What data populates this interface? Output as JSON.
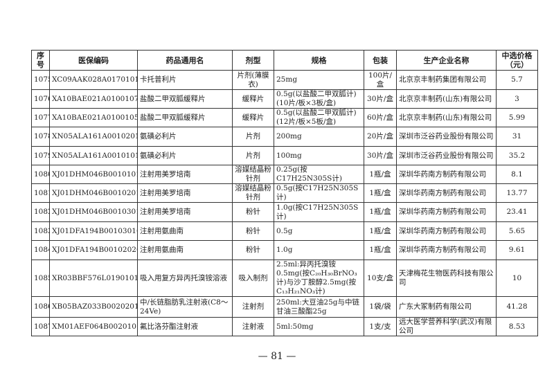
{
  "table": {
    "headers": [
      "序号",
      "医保编码",
      "药品通用名",
      "剂型",
      "规格",
      "包装",
      "生产企业名称",
      "中选价格（元）"
    ],
    "rows": [
      [
        "1075",
        "XC09AAK028A017010100062",
        "卡托普利片",
        "片剂(薄膜衣)",
        "25mg",
        "100片/盒",
        "北京京丰制药集团有限公司",
        "5.7"
      ],
      [
        "1076",
        "XA10BAE021A010010704105",
        "盐酸二甲双胍缓释片",
        "缓释片",
        "0.5g(以盐酸二甲双胍计)(10片/板×3板/盒)",
        "30片/盒",
        "北京京丰制药(山东)有限公司",
        "3"
      ],
      [
        "1077",
        "XA10BAE021A010010504105",
        "盐酸二甲双胍缓释片",
        "缓释片",
        "0.5g(以盐酸二甲双胍计)(12片/板×5板/盒)",
        "60片/盒",
        "北京京丰制药(山东)有限公司",
        "5.99"
      ],
      [
        "1078",
        "XN05ALA161A001020104859",
        "氨磺必利片",
        "片剂",
        "200mg",
        "20片/盒",
        "深圳市泛谷药业股份有限公司",
        "31"
      ],
      [
        "1079",
        "XN05ALA161A001010104859",
        "氨磺必利片",
        "片剂",
        "100mg",
        "30片/盒",
        "深圳市泛谷药业股份有限公司",
        "35.2"
      ],
      [
        "1080",
        "XJ01DHM046B001010100505",
        "注射用美罗培南",
        "溶媒结晶粉针剂",
        "0.25g(按C17H25N305S计)",
        "1瓶/盒",
        "深圳华药南方制药有限公司",
        "8.1"
      ],
      [
        "1081",
        "XJ01DHM046B001020100505",
        "注射用美罗培南",
        "溶媒结晶粉针剂",
        "0.5g(按C17H25N305S计)",
        "1瓶/盒",
        "深圳华药南方制药有限公司",
        "13.77"
      ],
      [
        "1082",
        "XJ01DHM046B001030100505",
        "注射用美罗培南",
        "粉针",
        "1.0g(按C17H25N305S计)",
        "1瓶/盒",
        "深圳华药南方制药有限公司",
        "23.41"
      ],
      [
        "1083",
        "XJ01DFA194B001030100505",
        "注射用氨曲南",
        "粉针",
        "0.5g",
        "1瓶/盒",
        "深圳华药南方制药有限公司",
        "5.65"
      ],
      [
        "1084",
        "XJ01DFA194B001020200505",
        "注射用氨曲南",
        "粉针",
        "1.0g",
        "1瓶/盒",
        "深圳华药南方制药有限公司",
        "9.61"
      ],
      [
        "1085",
        "XR03BBF576L019010110296",
        "吸入用复方异丙托溴铵溶液",
        "吸入制剂",
        "2.5ml:异丙托溴铵0.5mg(按C₂₀H₃₀BrNO₃计)与沙丁胺醇2.5mg(按C₁₃H₂₁NO₃计)",
        "10支/盒",
        "天津梅花生物医药科技有限公司",
        "10"
      ],
      [
        "1086",
        "XB05BAZ033B002020100273",
        "中/长链脂肪乳注射液(C8～24Ve)",
        "注射剂",
        "250ml:大豆油25g与中链甘油三酸酯25g",
        "1袋/袋",
        "广东大冢制药有限公司",
        "41.28"
      ],
      [
        "1087",
        "XM01AEF064B002010101930",
        "氟比洛芬酯注射液",
        "注射液",
        "5ml:50mg",
        "1支/支",
        "远大医学营养科学(武汉)有限公司",
        "8.53"
      ]
    ]
  },
  "page_number": "— 81 —"
}
